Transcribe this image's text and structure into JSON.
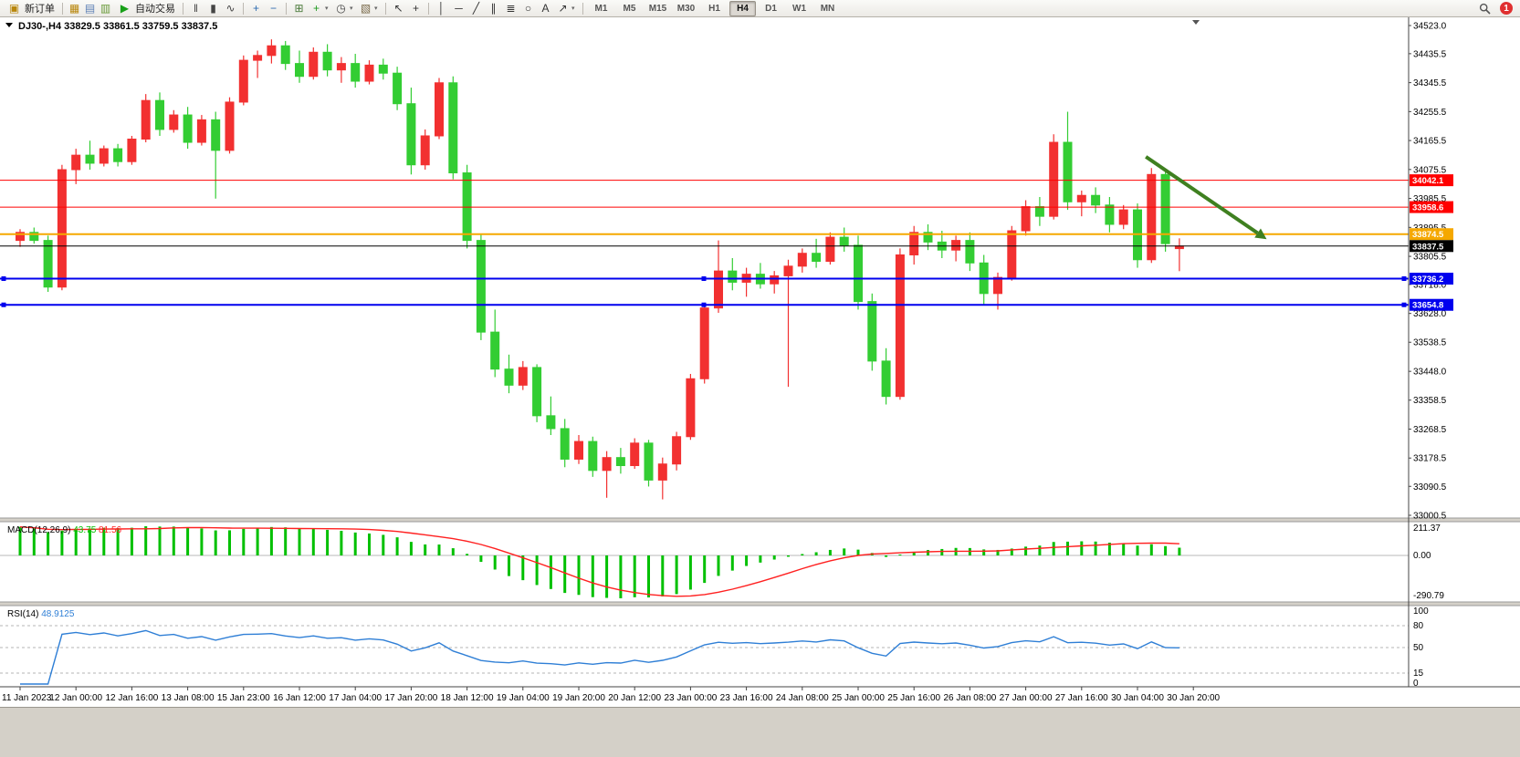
{
  "toolbar": {
    "new_order": {
      "label": "新订单"
    },
    "autotrading": {
      "label": "自动交易"
    },
    "icons_left": [
      {
        "name": "new-chart-icon",
        "glyph": "▦",
        "color": "#b8860b"
      },
      {
        "name": "profiles-icon",
        "glyph": "▤",
        "color": "#5b7fb5"
      },
      {
        "name": "market-watch-icon",
        "glyph": "▥",
        "color": "#6a9a3a"
      }
    ],
    "chart_tool_icons": [
      {
        "name": "bar-chart-icon",
        "glyph": "‖",
        "color": "#444"
      },
      {
        "name": "candlestick-chart-icon",
        "glyph": "▮",
        "color": "#444"
      },
      {
        "name": "line-chart-icon",
        "glyph": "∿",
        "color": "#444"
      },
      {
        "name": "zoom-in-icon",
        "glyph": "+",
        "color": "#2d6bb0",
        "sep_before": true
      },
      {
        "name": "zoom-out-icon",
        "glyph": "−",
        "color": "#2d6bb0"
      },
      {
        "name": "tile-windows-icon",
        "glyph": "⊞",
        "color": "#4a7a3a",
        "sep_before": true
      },
      {
        "name": "indicators-icon",
        "glyph": "+",
        "color": "#1f9a1f",
        "dropdown": true
      },
      {
        "name": "periods-icon",
        "glyph": "◷",
        "color": "#444",
        "dropdown": true
      },
      {
        "name": "templates-icon",
        "glyph": "▧",
        "color": "#7a6a4a",
        "dropdown": true
      },
      {
        "name": "cursor-icon",
        "glyph": "↖",
        "color": "#333",
        "sep_before": true
      },
      {
        "name": "crosshair-icon",
        "glyph": "+",
        "color": "#333"
      },
      {
        "name": "vertical-line-icon",
        "glyph": "│",
        "color": "#333",
        "sep_before": true
      },
      {
        "name": "horizontal-line-icon",
        "glyph": "─",
        "color": "#333"
      },
      {
        "name": "trendline-icon",
        "glyph": "╱",
        "color": "#333"
      },
      {
        "name": "channel-icon",
        "glyph": "∥",
        "color": "#333"
      },
      {
        "name": "fibonacci-icon",
        "glyph": "≣",
        "color": "#333"
      },
      {
        "name": "shapes-icon",
        "glyph": "○",
        "color": "#333"
      },
      {
        "name": "text-tool-icon",
        "glyph": "A",
        "color": "#333"
      },
      {
        "name": "arrow-tool-icon",
        "glyph": "↗",
        "color": "#333",
        "dropdown": true
      }
    ],
    "timeframes": [
      "M1",
      "M5",
      "M15",
      "M30",
      "H1",
      "H4",
      "D1",
      "W1",
      "MN"
    ],
    "active_timeframe": "H4",
    "notification_badge": "1"
  },
  "chart": {
    "header": {
      "symbol_period": "DJ30-,H4",
      "ohlc_text": "33829.5 33861.5 33759.5 33837.5"
    }
  },
  "chart_data": [
    {
      "type": "candlestick",
      "title": "DJ30-,H4",
      "timeframe": "H4",
      "current_ohlc": {
        "open": 33829.5,
        "high": 33861.5,
        "low": 33759.5,
        "close": 33837.5
      },
      "color_convention": "red-up-green-down",
      "bull_color": "#f23030",
      "bear_color": "#33cd33",
      "y_axis": {
        "min": 33000.5,
        "max": 34523.0,
        "ticks": [
          "34523.0",
          "34435.5",
          "34345.5",
          "34255.5",
          "34165.5",
          "34075.5",
          "33985.5",
          "33895.5",
          "33805.5",
          "33718.0",
          "33628.0",
          "33538.5",
          "33448.0",
          "33358.5",
          "33268.5",
          "33178.5",
          "33090.5",
          "33000.5"
        ]
      },
      "x_labels": [
        "11 Jan 2023",
        "12 Jan 00:00",
        "12 Jan 16:00",
        "13 Jan 08:00",
        "15 Jan 23:00",
        "16 Jan 12:00",
        "17 Jan 04:00",
        "17 Jan 20:00",
        "18 Jan 12:00",
        "19 Jan 04:00",
        "19 Jan 20:00",
        "20 Jan 12:00",
        "23 Jan 00:00",
        "23 Jan 16:00",
        "24 Jan 08:00",
        "25 Jan 00:00",
        "25 Jan 16:00",
        "26 Jan 08:00",
        "27 Jan 00:00",
        "27 Jan 16:00",
        "30 Jan 04:00",
        "30 Jan 20:00"
      ],
      "label_every_n_bars": 4,
      "hlines": [
        {
          "price": 34042.1,
          "label": "34042.1",
          "color": "#ff0000",
          "width": 1
        },
        {
          "price": 33958.6,
          "label": "33958.6",
          "color": "#ff0000",
          "width": 1
        },
        {
          "price": 33874.5,
          "label": "33874.5",
          "color": "#f5a800",
          "width": 2
        },
        {
          "price": 33837.5,
          "label": "33837.5",
          "color": "#000000",
          "width": 1,
          "role": "bid-price"
        },
        {
          "price": 33736.2,
          "label": "33736.2",
          "color": "#0000ee",
          "width": 2,
          "handles": true
        },
        {
          "price": 33654.8,
          "label": "33654.8",
          "color": "#0000ee",
          "width": 2,
          "handles": true
        }
      ],
      "trend_arrow": {
        "from_bar": 80.6,
        "from_price": 34115,
        "to_bar": 88.6,
        "to_price": 33878,
        "color": "#3f8020"
      },
      "candles": [
        [
          33855,
          33890,
          33835,
          33880
        ],
        [
          33880,
          33895,
          33845,
          33855
        ],
        [
          33855,
          33870,
          33695,
          33710
        ],
        [
          33710,
          34090,
          33700,
          34075
        ],
        [
          34075,
          34140,
          34030,
          34120
        ],
        [
          34120,
          34165,
          34075,
          34095
        ],
        [
          34095,
          34150,
          34085,
          34140
        ],
        [
          34140,
          34155,
          34085,
          34100
        ],
        [
          34100,
          34180,
          34090,
          34170
        ],
        [
          34170,
          34310,
          34160,
          34290
        ],
        [
          34290,
          34315,
          34180,
          34200
        ],
        [
          34200,
          34260,
          34190,
          34245
        ],
        [
          34245,
          34270,
          34140,
          34160
        ],
        [
          34160,
          34245,
          34150,
          34230
        ],
        [
          34230,
          34255,
          33985,
          34135
        ],
        [
          34135,
          34300,
          34125,
          34285
        ],
        [
          34285,
          34430,
          34275,
          34415
        ],
        [
          34415,
          34445,
          34360,
          34430
        ],
        [
          34430,
          34480,
          34405,
          34460
        ],
        [
          34460,
          34475,
          34385,
          34405
        ],
        [
          34405,
          34445,
          34345,
          34365
        ],
        [
          34365,
          34455,
          34355,
          34440
        ],
        [
          34440,
          34465,
          34365,
          34385
        ],
        [
          34385,
          34425,
          34345,
          34405
        ],
        [
          34405,
          34435,
          34330,
          34350
        ],
        [
          34350,
          34415,
          34340,
          34400
        ],
        [
          34400,
          34420,
          34355,
          34375
        ],
        [
          34375,
          34395,
          34260,
          34280
        ],
        [
          34280,
          34330,
          34060,
          34090
        ],
        [
          34090,
          34200,
          34075,
          34180
        ],
        [
          34180,
          34360,
          34170,
          34345
        ],
        [
          34345,
          34365,
          34045,
          34065
        ],
        [
          34065,
          34090,
          33830,
          33855
        ],
        [
          33855,
          33875,
          33545,
          33570
        ],
        [
          33570,
          33640,
          33430,
          33455
        ],
        [
          33455,
          33500,
          33380,
          33405
        ],
        [
          33405,
          33480,
          33390,
          33460
        ],
        [
          33460,
          33470,
          33290,
          33310
        ],
        [
          33310,
          33370,
          33250,
          33270
        ],
        [
          33270,
          33300,
          33150,
          33175
        ],
        [
          33175,
          33250,
          33160,
          33230
        ],
        [
          33230,
          33245,
          33120,
          33140
        ],
        [
          33140,
          33200,
          33055,
          33180
        ],
        [
          33180,
          33210,
          33130,
          33155
        ],
        [
          33155,
          33240,
          33145,
          33225
        ],
        [
          33225,
          33235,
          33090,
          33110
        ],
        [
          33110,
          33180,
          33050,
          33160
        ],
        [
          33160,
          33260,
          33140,
          33245
        ],
        [
          33245,
          33440,
          33235,
          33425
        ],
        [
          33425,
          33660,
          33410,
          33645
        ],
        [
          33645,
          33855,
          33630,
          33760
        ],
        [
          33760,
          33800,
          33700,
          33725
        ],
        [
          33725,
          33770,
          33680,
          33750
        ],
        [
          33750,
          33785,
          33705,
          33720
        ],
        [
          33720,
          33760,
          33690,
          33745
        ],
        [
          33745,
          33795,
          33400,
          33775
        ],
        [
          33775,
          33830,
          33755,
          33815
        ],
        [
          33815,
          33860,
          33770,
          33790
        ],
        [
          33790,
          33880,
          33780,
          33865
        ],
        [
          33865,
          33895,
          33820,
          33840
        ],
        [
          33840,
          33870,
          33640,
          33665
        ],
        [
          33665,
          33690,
          33450,
          33480
        ],
        [
          33480,
          33520,
          33345,
          33370
        ],
        [
          33370,
          33830,
          33360,
          33810
        ],
        [
          33810,
          33900,
          33780,
          33880
        ],
        [
          33880,
          33905,
          33825,
          33850
        ],
        [
          33850,
          33885,
          33800,
          33825
        ],
        [
          33825,
          33870,
          33790,
          33855
        ],
        [
          33855,
          33880,
          33760,
          33785
        ],
        [
          33785,
          33810,
          33655,
          33690
        ],
        [
          33690,
          33755,
          33640,
          33740
        ],
        [
          33740,
          33900,
          33730,
          33885
        ],
        [
          33885,
          33980,
          33870,
          33960
        ],
        [
          33960,
          33990,
          33900,
          33930
        ],
        [
          33930,
          34185,
          33920,
          34160
        ],
        [
          34160,
          34255,
          33950,
          33975
        ],
        [
          33975,
          34010,
          33930,
          33995
        ],
        [
          33995,
          34020,
          33940,
          33965
        ],
        [
          33965,
          33990,
          33880,
          33905
        ],
        [
          33905,
          33965,
          33890,
          33950
        ],
        [
          33950,
          33970,
          33770,
          33795
        ],
        [
          33795,
          34080,
          33785,
          34060
        ],
        [
          34060,
          34075,
          33820,
          33845
        ],
        [
          33829.5,
          33861.5,
          33759.5,
          33837.5
        ]
      ]
    },
    {
      "type": "macd",
      "name": "MACD(12,26,9)",
      "params": [
        12,
        26,
        9
      ],
      "value_main": "43.75",
      "value_signal": "81.56",
      "axis_ticks": [
        "211.37",
        "0.00",
        "-290.79"
      ],
      "histogram_color": "#00c000",
      "signal_color": "#ff2020"
    },
    {
      "type": "rsi",
      "name": "RSI(14)",
      "period": 14,
      "value": "48.9125",
      "axis_ticks": [
        "100",
        "80",
        "50",
        "15",
        "0"
      ],
      "levels": [
        80,
        50,
        15
      ],
      "range": [
        0,
        100
      ],
      "line_color": "#2f7fd6"
    }
  ]
}
